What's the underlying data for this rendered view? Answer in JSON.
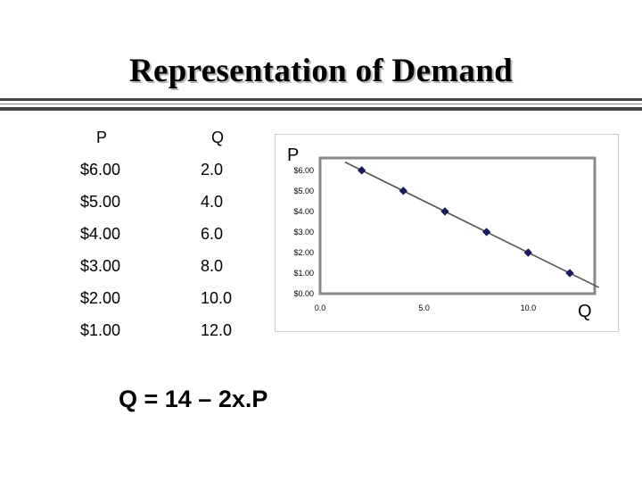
{
  "slide": {
    "title": "Representation of Demand",
    "equation": "Q = 14 – 2x.P"
  },
  "table": {
    "headers": [
      "P",
      "Q"
    ],
    "rows": [
      {
        "p": "$6.00",
        "q": "2.0"
      },
      {
        "p": "$5.00",
        "q": "4.0"
      },
      {
        "p": "$4.00",
        "q": "6.0"
      },
      {
        "p": "$3.00",
        "q": "8.0"
      },
      {
        "p": "$2.00",
        "q": "10.0"
      },
      {
        "p": "$1.00",
        "q": "12.0"
      }
    ]
  },
  "chart_data": {
    "type": "scatter",
    "ylabel": "P",
    "xlabel": "Q",
    "x": [
      2,
      4,
      6,
      8,
      10,
      12
    ],
    "y": [
      6,
      5,
      4,
      3,
      2,
      1
    ],
    "xlim": [
      0,
      13.2
    ],
    "ylim": [
      0,
      6.6
    ],
    "x_ticks": [
      0,
      5,
      10
    ],
    "x_tick_labels": [
      "0.0",
      "5.0",
      "10.0"
    ],
    "y_ticks": [
      0,
      1,
      2,
      3,
      4,
      5,
      6
    ],
    "y_tick_labels": [
      "$0.00",
      "$1.00",
      "$2.00",
      "$3.00",
      "$4.00",
      "$5.00",
      "$6.00"
    ],
    "trendline": {
      "x": [
        1.2,
        13.4
      ],
      "y": [
        6.4,
        0.3
      ]
    },
    "grid": false,
    "colors": {
      "marker": "#1a1a66",
      "line": "#555555",
      "frame": "#888888",
      "outer_border": "#cccccc"
    }
  }
}
